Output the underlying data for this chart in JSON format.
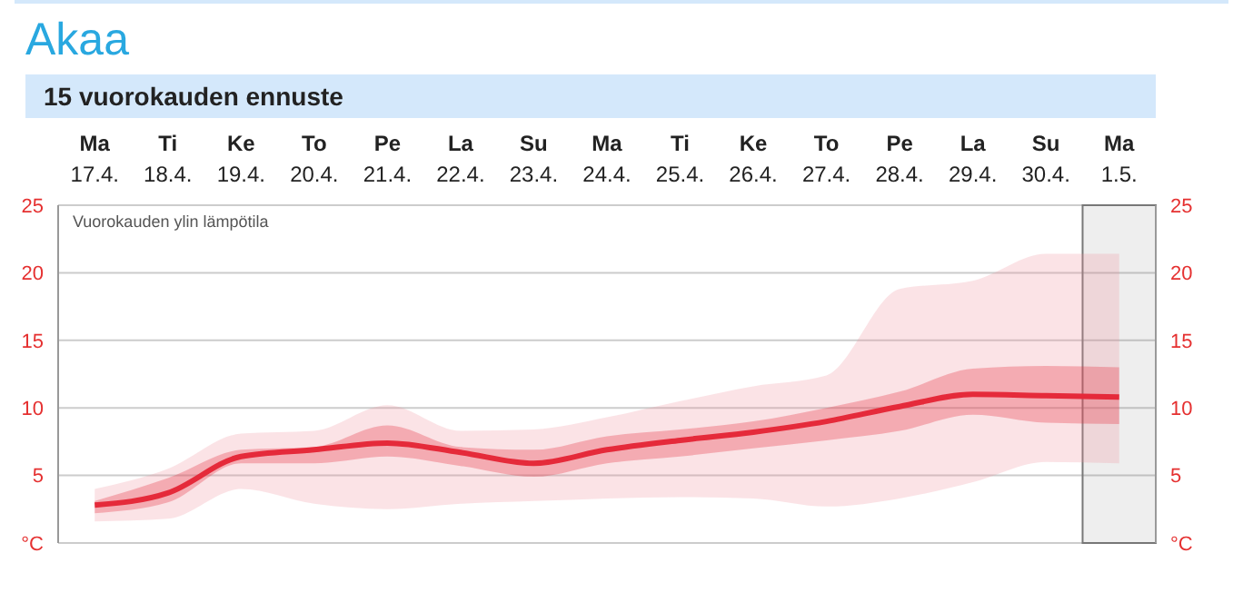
{
  "chart_data": {
    "type": "line",
    "title": "Akaa",
    "subtitle": "15 vuorokauden ennuste",
    "categories": [
      "Ma 17.4.",
      "Ti 18.4.",
      "Ke 19.4.",
      "To 20.4.",
      "Pe 21.4.",
      "La 22.4.",
      "Su 23.4.",
      "Ma 24.4.",
      "Ti 25.4.",
      "Ke 26.4.",
      "To 27.4.",
      "Pe 28.4.",
      "La 29.4.",
      "Su 30.4.",
      "Ma 1.5."
    ],
    "series": [
      {
        "color": "#f0909a",
        "values": [
          null,
          null,
          null,
          null,
          null,
          null,
          null,
          null,
          null,
          null,
          null,
          null,
          null,
          null,
          null
        ],
        "lower": [
          1.6,
          1.8,
          4.0,
          2.9,
          2.5,
          2.9,
          3.1,
          3.3,
          3.4,
          3.3,
          2.7,
          3.3,
          4.5,
          6.0,
          5.9
        ],
        "upper": [
          4.0,
          5.5,
          8.1,
          8.3,
          10.2,
          8.3,
          8.4,
          9.3,
          10.5,
          11.6,
          12.4,
          18.8,
          19.4,
          21.4,
          21.4
        ]
      },
      {
        "color": "#e52a3a",
        "values": [
          2.8,
          3.7,
          6.4,
          6.9,
          7.4,
          6.7,
          5.9,
          6.9,
          7.6,
          8.2,
          9.0,
          10.1,
          11.0,
          10.9,
          10.8
        ],
        "lower": [
          2.2,
          3.0,
          5.9,
          5.9,
          6.4,
          5.7,
          4.9,
          5.9,
          6.4,
          7.0,
          7.6,
          8.3,
          9.5,
          8.9,
          8.8
        ],
        "upper": [
          3.1,
          4.8,
          6.9,
          7.1,
          8.7,
          7.1,
          6.9,
          7.9,
          8.4,
          9.0,
          10.0,
          11.2,
          12.9,
          13.1,
          13.0
        ]
      }
    ],
    "ylim": [
      0,
      25
    ],
    "yticks": [
      {
        "value": 0,
        "label": "°C"
      },
      5,
      10,
      15,
      20,
      25
    ],
    "y2lim": [
      0,
      25
    ],
    "y2ticks": [
      {
        "value": 0,
        "label": "°C"
      },
      5,
      10,
      15,
      20,
      25
    ],
    "grid": "y",
    "annotations": [
      "Vuorokauden ylin lämpötila"
    ],
    "bands": [
      {
        "axis": "x",
        "from": "Ma 1.5.",
        "to": "Ma 1.5.",
        "color": "#777777"
      }
    ]
  }
}
